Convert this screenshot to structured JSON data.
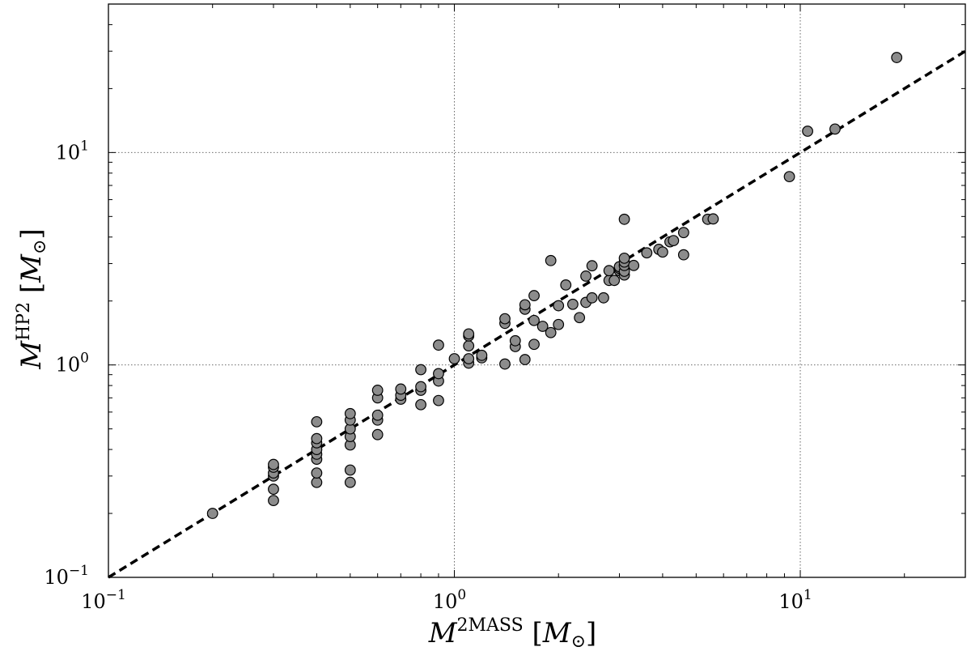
{
  "chart_data": {
    "type": "scatter",
    "title": "",
    "x_scale": "log",
    "y_scale": "log",
    "xlim": [
      0.1,
      30
    ],
    "ylim": [
      0.1,
      50
    ],
    "x_ticks": [
      0.1,
      1,
      10
    ],
    "y_ticks": [
      0.1,
      1,
      10
    ],
    "grid": true,
    "xlabel": {
      "main": "M",
      "sup": "2MASS",
      "unit_open": "[M",
      "unit_sub": "⊙",
      "unit_close": "]"
    },
    "ylabel": {
      "main": "M",
      "sup": "HP2",
      "unit_open": "[M",
      "unit_sub": "⊙",
      "unit_close": "]"
    },
    "reference_line": {
      "label": "y = x",
      "style": "dashed",
      "color": "#000000"
    },
    "marker": {
      "fill": "#8c8c8c",
      "stroke": "#000000"
    },
    "points": [
      [
        0.2,
        0.2
      ],
      [
        0.3,
        0.23
      ],
      [
        0.3,
        0.26
      ],
      [
        0.3,
        0.3
      ],
      [
        0.3,
        0.31
      ],
      [
        0.3,
        0.33
      ],
      [
        0.3,
        0.34
      ],
      [
        0.4,
        0.28
      ],
      [
        0.4,
        0.31
      ],
      [
        0.4,
        0.36
      ],
      [
        0.4,
        0.38
      ],
      [
        0.4,
        0.4
      ],
      [
        0.4,
        0.43
      ],
      [
        0.4,
        0.45
      ],
      [
        0.4,
        0.54
      ],
      [
        0.5,
        0.28
      ],
      [
        0.5,
        0.32
      ],
      [
        0.5,
        0.42
      ],
      [
        0.5,
        0.46
      ],
      [
        0.5,
        0.5
      ],
      [
        0.5,
        0.55
      ],
      [
        0.5,
        0.59
      ],
      [
        0.6,
        0.47
      ],
      [
        0.6,
        0.55
      ],
      [
        0.6,
        0.58
      ],
      [
        0.6,
        0.7
      ],
      [
        0.6,
        0.76
      ],
      [
        0.7,
        0.69
      ],
      [
        0.7,
        0.72
      ],
      [
        0.7,
        0.77
      ],
      [
        0.8,
        0.65
      ],
      [
        0.8,
        0.76
      ],
      [
        0.8,
        0.79
      ],
      [
        0.8,
        0.95
      ],
      [
        0.9,
        0.68
      ],
      [
        0.9,
        0.84
      ],
      [
        0.9,
        0.91
      ],
      [
        0.9,
        1.24
      ],
      [
        1.0,
        1.07
      ],
      [
        1.1,
        1.02
      ],
      [
        1.1,
        1.07
      ],
      [
        1.1,
        1.23
      ],
      [
        1.1,
        1.37
      ],
      [
        1.1,
        1.4
      ],
      [
        1.2,
        1.08
      ],
      [
        1.2,
        1.11
      ],
      [
        1.4,
        1.01
      ],
      [
        1.4,
        1.57
      ],
      [
        1.4,
        1.65
      ],
      [
        1.5,
        1.22
      ],
      [
        1.5,
        1.3
      ],
      [
        1.6,
        1.06
      ],
      [
        1.6,
        1.83
      ],
      [
        1.6,
        1.92
      ],
      [
        1.7,
        1.25
      ],
      [
        1.7,
        1.62
      ],
      [
        1.7,
        2.12
      ],
      [
        1.8,
        1.52
      ],
      [
        1.9,
        1.42
      ],
      [
        1.9,
        3.1
      ],
      [
        2.0,
        1.55
      ],
      [
        2.0,
        1.9
      ],
      [
        2.1,
        2.38
      ],
      [
        2.2,
        1.93
      ],
      [
        2.3,
        1.67
      ],
      [
        2.4,
        1.97
      ],
      [
        2.4,
        2.62
      ],
      [
        2.5,
        2.07
      ],
      [
        2.5,
        2.93
      ],
      [
        2.7,
        2.07
      ],
      [
        2.8,
        2.5
      ],
      [
        2.8,
        2.78
      ],
      [
        2.9,
        2.5
      ],
      [
        3.0,
        2.78
      ],
      [
        3.0,
        2.85
      ],
      [
        3.0,
        2.9
      ],
      [
        3.1,
        2.65
      ],
      [
        3.1,
        2.76
      ],
      [
        3.1,
        2.94
      ],
      [
        3.1,
        3.05
      ],
      [
        3.1,
        3.18
      ],
      [
        3.1,
        4.85
      ],
      [
        3.3,
        2.94
      ],
      [
        3.6,
        3.37
      ],
      [
        3.9,
        3.5
      ],
      [
        4.0,
        3.4
      ],
      [
        4.2,
        3.8
      ],
      [
        4.3,
        3.85
      ],
      [
        4.6,
        3.3
      ],
      [
        4.6,
        4.2
      ],
      [
        5.4,
        4.85
      ],
      [
        5.6,
        4.87
      ],
      [
        9.3,
        7.7
      ],
      [
        10.5,
        12.6
      ],
      [
        12.6,
        12.9
      ],
      [
        19.0,
        28.0
      ]
    ]
  }
}
